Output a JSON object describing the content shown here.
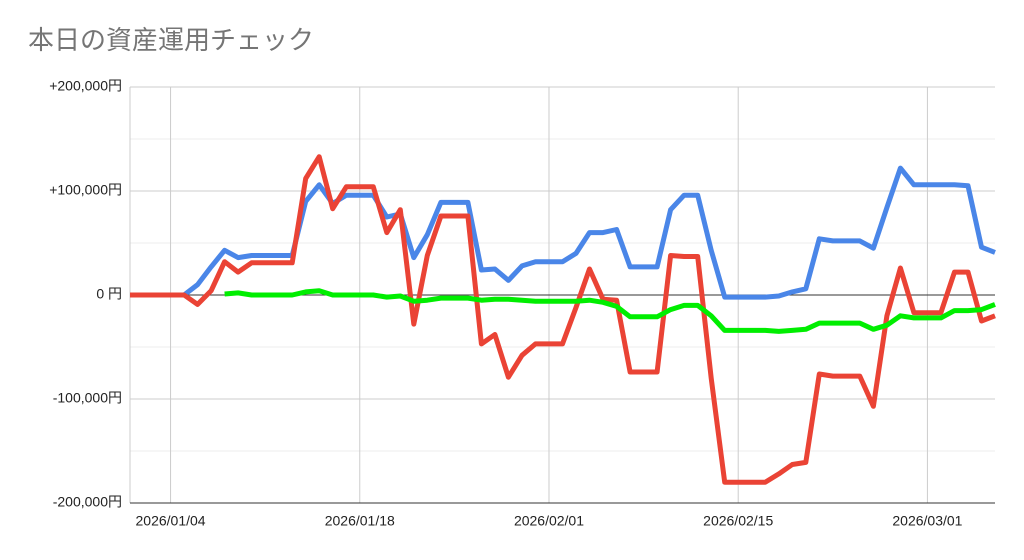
{
  "chart_data": {
    "type": "line",
    "title": "本日の資産運用チェック",
    "x": [
      "2026/01/01",
      "2026/01/02",
      "2026/01/03",
      "2026/01/04",
      "2026/01/05",
      "2026/01/06",
      "2026/01/07",
      "2026/01/08",
      "2026/01/09",
      "2026/01/10",
      "2026/01/11",
      "2026/01/12",
      "2026/01/13",
      "2026/01/14",
      "2026/01/15",
      "2026/01/16",
      "2026/01/17",
      "2026/01/18",
      "2026/01/19",
      "2026/01/20",
      "2026/01/21",
      "2026/01/22",
      "2026/01/23",
      "2026/01/24",
      "2026/01/25",
      "2026/01/26",
      "2026/01/27",
      "2026/01/28",
      "2026/01/29",
      "2026/01/30",
      "2026/01/31",
      "2026/02/01",
      "2026/02/02",
      "2026/02/03",
      "2026/02/04",
      "2026/02/05",
      "2026/02/06",
      "2026/02/07",
      "2026/02/08",
      "2026/02/09",
      "2026/02/10",
      "2026/02/11",
      "2026/02/12",
      "2026/02/13",
      "2026/02/14",
      "2026/02/15",
      "2026/02/16",
      "2026/02/17",
      "2026/02/18",
      "2026/02/19",
      "2026/02/20",
      "2026/02/21",
      "2026/02/22",
      "2026/02/23",
      "2026/02/24",
      "2026/02/25",
      "2026/02/26",
      "2026/02/27",
      "2026/02/28",
      "2026/03/01",
      "2026/03/02",
      "2026/03/03",
      "2026/03/04",
      "2026/03/05",
      "2026/03/06"
    ],
    "xlim": [
      "2026/01/01",
      "2026/03/06"
    ],
    "xticks": [
      "2026/01/04",
      "2026/01/18",
      "2026/02/01",
      "2026/02/15",
      "2026/03/01"
    ],
    "ylim": [
      -200000,
      200000
    ],
    "yticks": [
      {
        "value": 200000,
        "label": "+200,000円"
      },
      {
        "value": 100000,
        "label": "+100,000円"
      },
      {
        "value": 0,
        "label": "0 円"
      },
      {
        "value": -100000,
        "label": "-100,000円"
      },
      {
        "value": -200000,
        "label": "-200,000円"
      }
    ],
    "minor_yticks": [
      150000,
      50000,
      -50000,
      -150000
    ],
    "grid": true,
    "series": [
      {
        "color": "#4a86e8",
        "values": [
          0,
          0,
          0,
          0,
          0,
          10000,
          27000,
          43000,
          36000,
          38000,
          38000,
          38000,
          38000,
          90000,
          106000,
          88000,
          96000,
          96000,
          96000,
          75000,
          78000,
          36000,
          58000,
          89000,
          89000,
          89000,
          24000,
          25000,
          14000,
          28000,
          32000,
          32000,
          32000,
          40000,
          60000,
          60000,
          63000,
          27000,
          27000,
          27000,
          82000,
          96000,
          96000,
          43000,
          -2000,
          -2000,
          -2000,
          -2000,
          -1000,
          3000,
          6000,
          54000,
          52000,
          52000,
          52000,
          45000,
          84000,
          122000,
          106000,
          106000,
          106000,
          106000,
          105000,
          46000,
          41000
        ]
      },
      {
        "color": "#ea4335",
        "values": [
          0,
          0,
          0,
          0,
          0,
          -9000,
          4000,
          32000,
          22000,
          31000,
          31000,
          31000,
          31000,
          112000,
          133000,
          83000,
          104000,
          104000,
          104000,
          60000,
          82000,
          -28000,
          38000,
          76000,
          76000,
          76000,
          -47000,
          -38000,
          -79000,
          -58000,
          -47000,
          -47000,
          -47000,
          -12000,
          25000,
          -4000,
          -5000,
          -74000,
          -74000,
          -74000,
          38000,
          37000,
          37000,
          -80000,
          -180000,
          -180000,
          -180000,
          -180000,
          -172000,
          -163000,
          -161000,
          -76000,
          -78000,
          -78000,
          -78000,
          -107000,
          -20000,
          26000,
          -17000,
          -17000,
          -17000,
          22000,
          22000,
          -25000,
          -20000
        ]
      },
      {
        "color": "#00ee00",
        "values": [
          null,
          null,
          null,
          null,
          null,
          null,
          null,
          1000,
          2000,
          0,
          0,
          0,
          0,
          3000,
          4000,
          0,
          0,
          0,
          0,
          -2000,
          -1000,
          -6000,
          -5000,
          -3000,
          -3000,
          -3000,
          -5000,
          -4000,
          -4000,
          -5000,
          -6000,
          -6000,
          -6000,
          -6000,
          -5000,
          -7000,
          -11000,
          -21000,
          -21000,
          -21000,
          -14000,
          -10000,
          -10000,
          -20000,
          -34000,
          -34000,
          -34000,
          -34000,
          -35000,
          -34000,
          -33000,
          -27000,
          -27000,
          -27000,
          -27000,
          -33000,
          -29000,
          -20000,
          -22000,
          -22000,
          -22000,
          -15000,
          -15000,
          -14000,
          -9000
        ]
      }
    ]
  }
}
